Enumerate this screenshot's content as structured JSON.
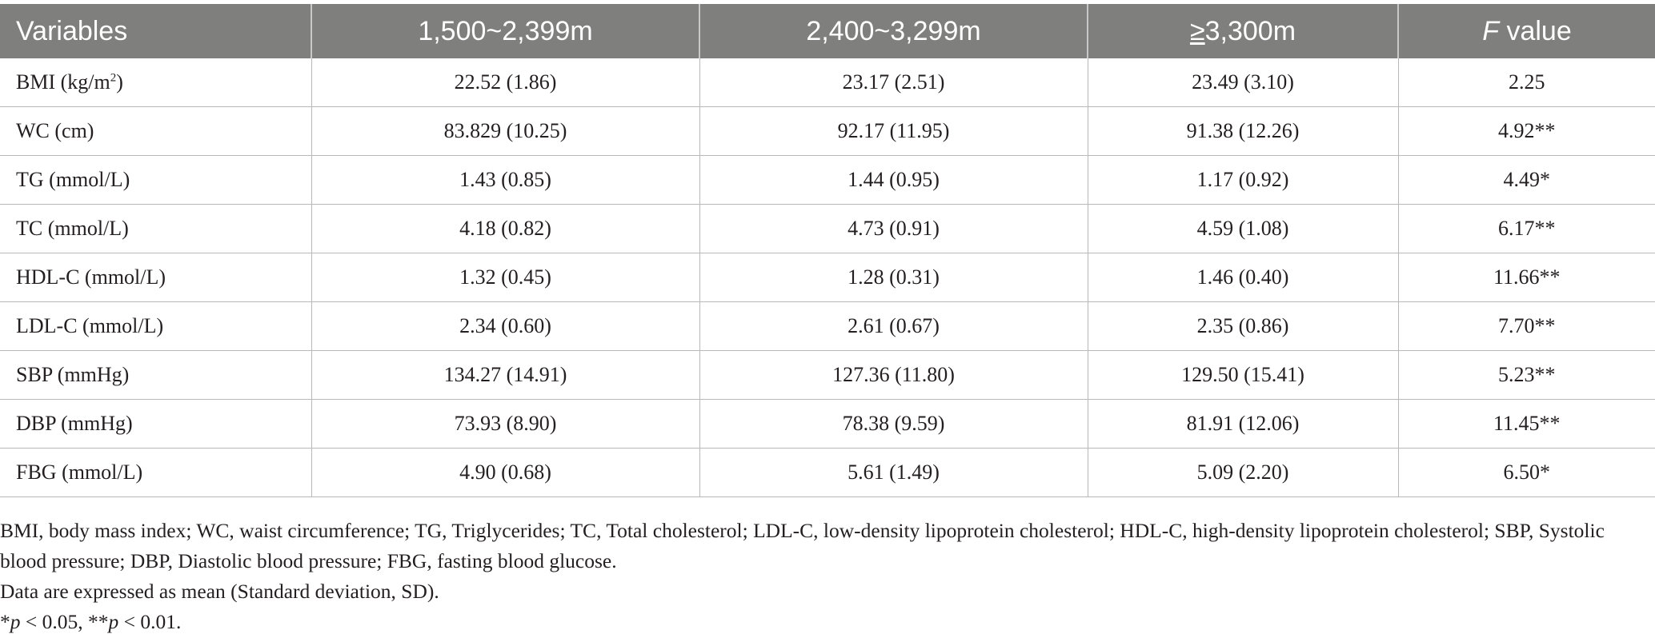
{
  "table": {
    "headers": {
      "variables": "Variables",
      "alt1": "1,500~2,399m",
      "alt2": "2,400~3,299m",
      "alt3_symbol": "≥",
      "alt3_rest": "3,300m",
      "f_italic": "F",
      "f_rest": " value"
    },
    "rows": [
      {
        "variable_main": "BMI (kg/m",
        "variable_sup": "2",
        "variable_tail": ")",
        "alt1": "22.52 (1.86)",
        "alt2": "23.17 (2.51)",
        "alt3": "23.49 (3.10)",
        "f_value": "2.25"
      },
      {
        "variable_main": "WC (cm)",
        "alt1": "83.829 (10.25)",
        "alt2": "92.17 (11.95)",
        "alt3": "91.38 (12.26)",
        "f_value": "4.92**"
      },
      {
        "variable_main": "TG (mmol/L)",
        "alt1": "1.43 (0.85)",
        "alt2": "1.44 (0.95)",
        "alt3": "1.17 (0.92)",
        "f_value": "4.49*"
      },
      {
        "variable_main": "TC (mmol/L)",
        "alt1": "4.18 (0.82)",
        "alt2": "4.73 (0.91)",
        "alt3": "4.59 (1.08)",
        "f_value": "6.17**"
      },
      {
        "variable_main": "HDL-C (mmol/L)",
        "alt1": "1.32 (0.45)",
        "alt2": "1.28 (0.31)",
        "alt3": "1.46 (0.40)",
        "f_value": "11.66**"
      },
      {
        "variable_main": "LDL-C (mmol/L)",
        "alt1": "2.34 (0.60)",
        "alt2": "2.61 (0.67)",
        "alt3": "2.35 (0.86)",
        "f_value": "7.70**"
      },
      {
        "variable_main": "SBP (mmHg)",
        "alt1": "134.27 (14.91)",
        "alt2": "127.36 (11.80)",
        "alt3": "129.50 (15.41)",
        "f_value": "5.23**"
      },
      {
        "variable_main": "DBP (mmHg)",
        "alt1": "73.93 (8.90)",
        "alt2": "78.38 (9.59)",
        "alt3": "81.91 (12.06)",
        "f_value": "11.45**"
      },
      {
        "variable_main": "FBG (mmol/L)",
        "alt1": "4.90 (0.68)",
        "alt2": "5.61 (1.49)",
        "alt3": "5.09 (2.20)",
        "f_value": "6.50*"
      }
    ]
  },
  "notes": {
    "abbreviations": "BMI, body mass index; WC, waist circumference; TG, Triglycerides; TC, Total cholesterol; LDL-C, low-density lipoprotein cholesterol; HDL-C, high-density lipoprotein cholesterol; SBP, Systolic blood pressure; DBP, Diastolic blood pressure; FBG, fasting blood glucose.",
    "data_expression": "Data are expressed as mean (Standard deviation, SD).",
    "sig_star1": "*",
    "sig_p1": "p",
    "sig_text1": " < 0.05, **",
    "sig_p2": "p",
    "sig_text2": " < 0.01."
  }
}
